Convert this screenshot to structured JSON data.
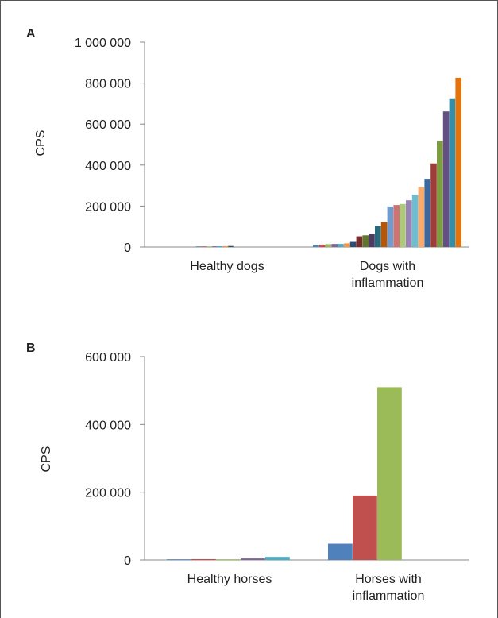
{
  "colors": {
    "axis": "#888888",
    "palette": [
      "#4f81bd",
      "#c0504d",
      "#9bbb59",
      "#8064a2",
      "#4bacc6",
      "#f79646",
      "#2c4d75",
      "#772c2a",
      "#5f7530",
      "#4d3b62",
      "#276a7c",
      "#b65708",
      "#729aca",
      "#cd7371",
      "#afc97a",
      "#9983b5",
      "#6fbdd1",
      "#f9ab6b",
      "#3a679c",
      "#9f3b38",
      "#7e9d40",
      "#664f83",
      "#358ea6",
      "#e4730d"
    ]
  },
  "chart_data": [
    {
      "panel": "A",
      "type": "bar",
      "ylabel": "CPS",
      "ylim": [
        0,
        1000000
      ],
      "yticks": [
        0,
        200000,
        400000,
        600000,
        800000,
        1000000
      ],
      "ytick_labels": [
        "0",
        "200 000",
        "400 000",
        "600 000",
        "800 000",
        "1 000 000"
      ],
      "categories": [
        "Healthy dogs",
        "Dogs with\ninflammation"
      ],
      "category_label_lines": [
        [
          "Healthy dogs"
        ],
        [
          "Dogs with",
          "inflammation"
        ]
      ],
      "groups": [
        [
          1500,
          2500,
          3000,
          3500,
          4000,
          4500,
          5000
        ],
        [
          10000,
          12000,
          14000,
          15000,
          15000,
          18000,
          25000,
          52000,
          57000,
          65000,
          102000,
          122000,
          198000,
          205000,
          210000,
          228000,
          255000,
          293000,
          333000,
          408000,
          518000,
          662000,
          722000,
          826000
        ]
      ]
    },
    {
      "panel": "B",
      "type": "bar",
      "ylabel": "CPS",
      "ylim": [
        0,
        600000
      ],
      "yticks": [
        0,
        200000,
        400000,
        600000
      ],
      "ytick_labels": [
        "0",
        "200 000",
        "400 000",
        "600 000"
      ],
      "categories": [
        "Healthy horses",
        "Horses with\ninflammation"
      ],
      "category_label_lines": [
        [
          "Healthy horses"
        ],
        [
          "Horses with",
          "inflammation"
        ]
      ],
      "groups": [
        [
          2000,
          2500,
          2000,
          4500,
          9000
        ],
        [
          48000,
          190000,
          510000
        ]
      ]
    }
  ]
}
